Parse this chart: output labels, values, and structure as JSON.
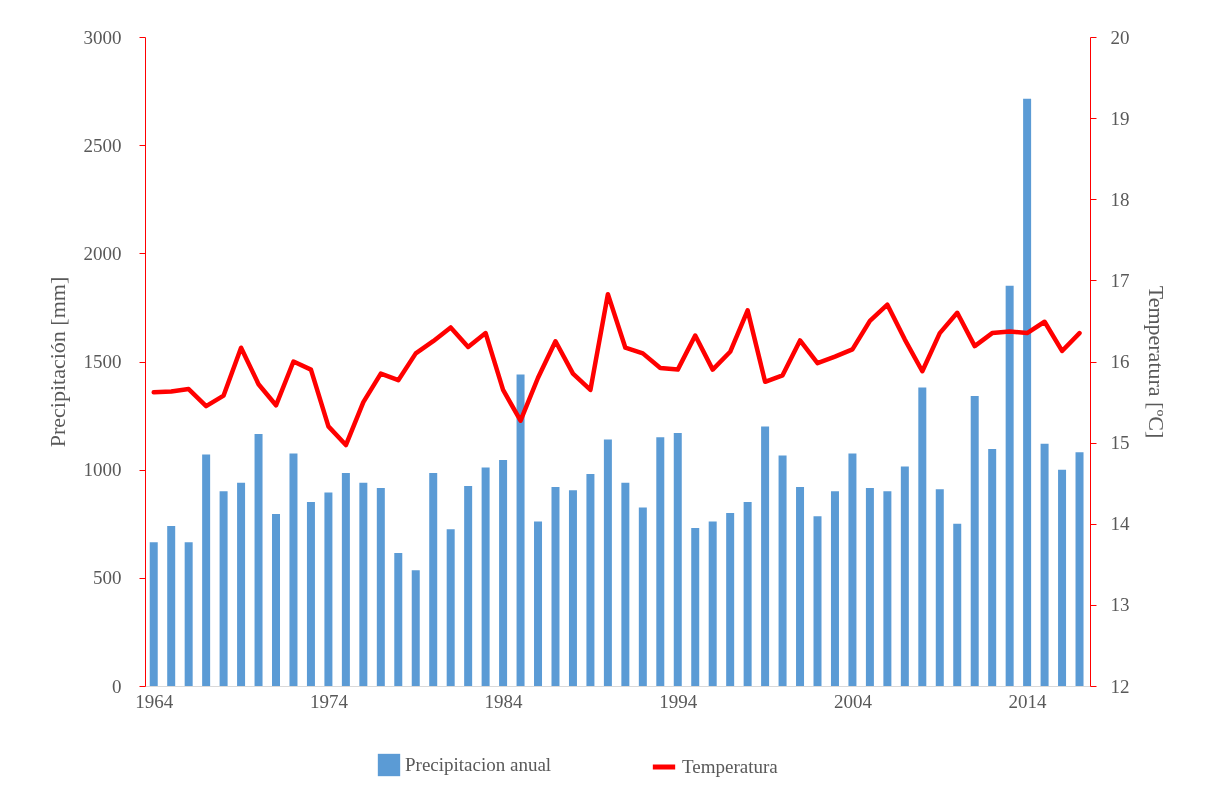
{
  "chart_data": {
    "type": "bar",
    "ylabel": "Precipitación [mm]",
    "y2label": "Temperatura [ºC]",
    "x": [
      1964,
      1965,
      1966,
      1967,
      1968,
      1969,
      1970,
      1971,
      1972,
      1973,
      1974,
      1975,
      1976,
      1977,
      1978,
      1979,
      1980,
      1981,
      1982,
      1983,
      1984,
      1985,
      1986,
      1987,
      1988,
      1989,
      1990,
      1991,
      1992,
      1993,
      1994,
      1995,
      1996,
      1997,
      1998,
      1999,
      2000,
      2001,
      2002,
      2003,
      2004,
      2005,
      2006,
      2007,
      2008,
      2009,
      2010,
      2011,
      2012,
      2013,
      2014,
      2015,
      2016,
      2017
    ],
    "series": [
      {
        "name": "Precipitacion anual",
        "color": "#5b9bd5",
        "values": [
          665,
          740,
          665,
          1070,
          900,
          940,
          1165,
          795,
          1075,
          850,
          895,
          985,
          940,
          915,
          615,
          535,
          985,
          725,
          925,
          1010,
          1045,
          1440,
          760,
          920,
          905,
          980,
          1140,
          940,
          825,
          1150,
          1170,
          730,
          760,
          800,
          850,
          1200,
          1065,
          920,
          785,
          900,
          1075,
          915,
          900,
          1015,
          1380,
          910,
          750,
          1340,
          1095,
          1850,
          2715,
          1120,
          1000,
          1080
        ]
      },
      {
        "name": "Temperatura",
        "type": "line",
        "axis": "y2",
        "color": "#ff0000",
        "values": [
          15.62,
          15.63,
          15.66,
          15.45,
          15.58,
          16.17,
          15.72,
          15.46,
          16.0,
          15.9,
          15.2,
          14.97,
          15.5,
          15.85,
          15.77,
          16.1,
          16.25,
          16.42,
          16.18,
          16.35,
          15.65,
          15.27,
          15.8,
          16.25,
          15.85,
          15.65,
          16.83,
          16.17,
          16.1,
          15.92,
          15.9,
          16.32,
          15.9,
          16.12,
          16.63,
          15.75,
          15.83,
          16.26,
          15.98,
          16.06,
          16.15,
          16.5,
          16.7,
          16.27,
          15.88,
          16.35,
          16.6,
          16.19,
          16.35,
          16.37,
          16.35,
          16.49,
          16.13,
          16.35
        ]
      }
    ],
    "xlim": [
      1963.5,
      2017.6
    ],
    "xticks": [
      1964,
      1974,
      1984,
      1994,
      2004,
      2014
    ],
    "ylim": [
      0,
      3000
    ],
    "yticks": [
      0,
      500,
      1000,
      1500,
      2000,
      2500,
      3000
    ],
    "y2lim": [
      12,
      20
    ],
    "y2ticks": [
      12,
      13,
      14,
      15,
      16,
      17,
      18,
      19,
      20
    ],
    "legend": "bottom",
    "grid": false
  }
}
